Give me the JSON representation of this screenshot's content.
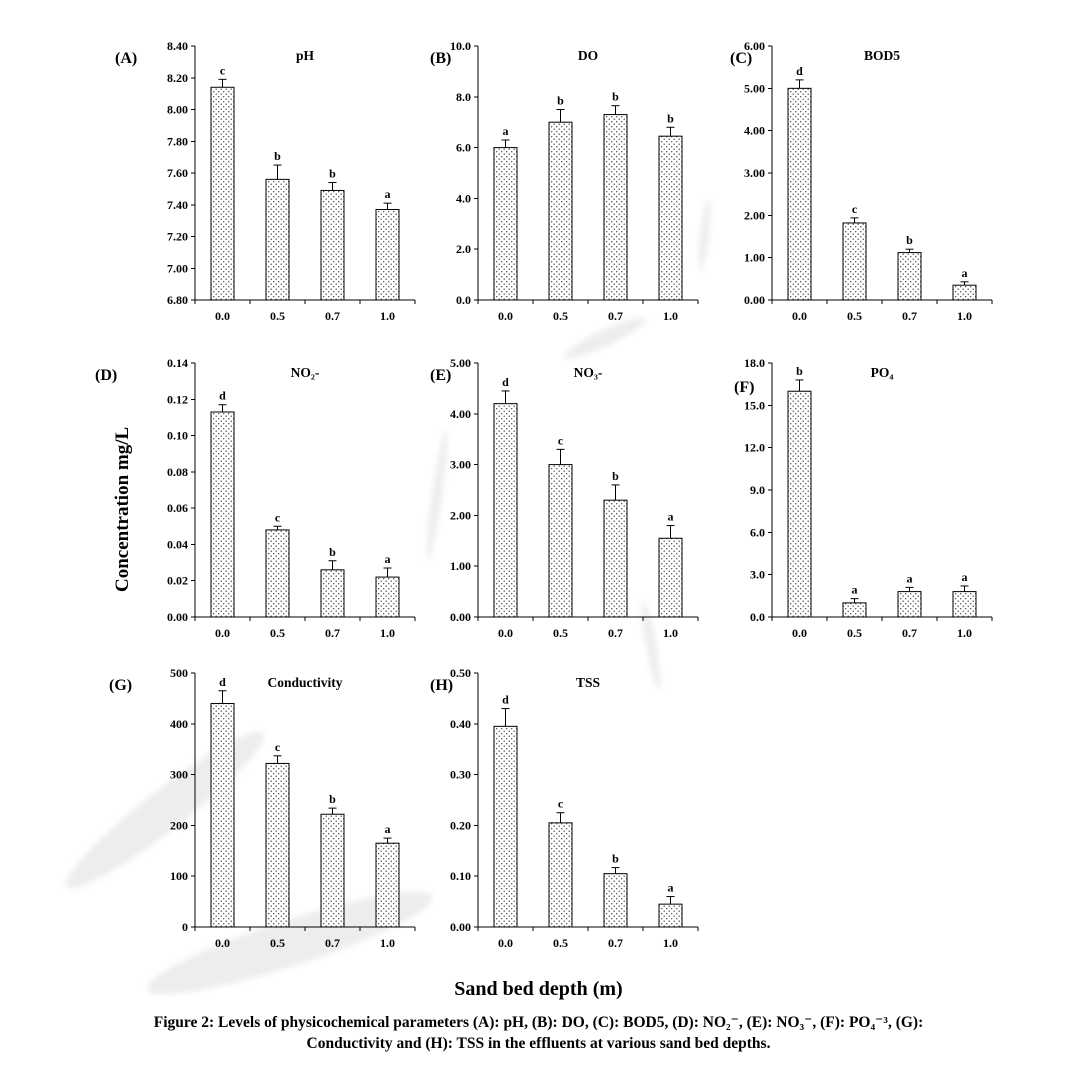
{
  "figure": {
    "y_axis_label": "Concentration mg/L",
    "x_axis_label": "Sand bed depth (m)",
    "caption_line1": "Figure 2: Levels of physicochemical parameters (A): pH, (B): DO, (C): BOD5, (D): NO₂⁻, (E): NO₃⁻, (F): PO₄⁻³, (G):",
    "caption_line2": "Conductivity and (H): TSS in the effluents at various sand bed depths."
  },
  "chart_data": [
    {
      "panel": "(A)",
      "title": "pH",
      "type": "bar",
      "categories": [
        "0.0",
        "0.5",
        "0.7",
        "1.0"
      ],
      "values": [
        8.14,
        7.56,
        7.49,
        7.37
      ],
      "errors": [
        0.05,
        0.09,
        0.05,
        0.04
      ],
      "letters": [
        "c",
        "b",
        "b",
        "a"
      ],
      "ymin": 6.8,
      "ymax": 8.4,
      "yticks": [
        "6.80",
        "7.00",
        "7.20",
        "7.40",
        "7.60",
        "7.80",
        "8.00",
        "8.20",
        "8.40"
      ]
    },
    {
      "panel": "(B)",
      "title": "DO",
      "type": "bar",
      "categories": [
        "0.0",
        "0.5",
        "0.7",
        "1.0"
      ],
      "values": [
        6.0,
        7.0,
        7.3,
        6.45
      ],
      "errors": [
        0.3,
        0.5,
        0.35,
        0.35
      ],
      "letters": [
        "a",
        "b",
        "b",
        "b"
      ],
      "ymin": 0,
      "ymax": 10,
      "yticks": [
        "0.0",
        "2.0",
        "4.0",
        "6.0",
        "8.0",
        "10.0"
      ]
    },
    {
      "panel": "(C)",
      "title": "BOD5",
      "type": "bar",
      "categories": [
        "0.0",
        "0.5",
        "0.7",
        "1.0"
      ],
      "values": [
        5.0,
        1.82,
        1.12,
        0.35
      ],
      "errors": [
        0.2,
        0.12,
        0.08,
        0.08
      ],
      "letters": [
        "d",
        "c",
        "b",
        "a"
      ],
      "ymin": 0,
      "ymax": 6,
      "yticks": [
        "0.00",
        "1.00",
        "2.00",
        "3.00",
        "4.00",
        "5.00",
        "6.00"
      ]
    },
    {
      "panel": "(D)",
      "title": "NO₂-",
      "type": "bar",
      "categories": [
        "0.0",
        "0.5",
        "0.7",
        "1.0"
      ],
      "values": [
        0.113,
        0.048,
        0.026,
        0.022
      ],
      "errors": [
        0.004,
        0.002,
        0.005,
        0.005
      ],
      "letters": [
        "d",
        "c",
        "b",
        "a"
      ],
      "ymin": 0,
      "ymax": 0.14,
      "yticks": [
        "0.00",
        "0.02",
        "0.04",
        "0.06",
        "0.08",
        "0.10",
        "0.12",
        "0.14"
      ]
    },
    {
      "panel": "(E)",
      "title": "NO₃-",
      "type": "bar",
      "categories": [
        "0.0",
        "0.5",
        "0.7",
        "1.0"
      ],
      "values": [
        4.2,
        3.0,
        2.3,
        1.55
      ],
      "errors": [
        0.25,
        0.3,
        0.3,
        0.25
      ],
      "letters": [
        "d",
        "c",
        "b",
        "a"
      ],
      "ymin": 0,
      "ymax": 5,
      "yticks": [
        "0.00",
        "1.00",
        "2.00",
        "3.00",
        "4.00",
        "5.00"
      ]
    },
    {
      "panel": "(F)",
      "title": "PO₄",
      "type": "bar",
      "categories": [
        "0.0",
        "0.5",
        "0.7",
        "1.0"
      ],
      "values": [
        16.0,
        1.0,
        1.8,
        1.8
      ],
      "errors": [
        0.8,
        0.3,
        0.3,
        0.4
      ],
      "letters": [
        "b",
        "a",
        "a",
        "a"
      ],
      "ymin": 0,
      "ymax": 18,
      "yticks": [
        "0.0",
        "3.0",
        "6.0",
        "9.0",
        "12.0",
        "15.0",
        "18.0"
      ]
    },
    {
      "panel": "(G)",
      "title": "Conductivity",
      "type": "bar",
      "categories": [
        "0.0",
        "0.5",
        "0.7",
        "1.0"
      ],
      "values": [
        440,
        322,
        222,
        165
      ],
      "errors": [
        25,
        15,
        12,
        10
      ],
      "letters": [
        "d",
        "c",
        "b",
        "a"
      ],
      "ymin": 0,
      "ymax": 500,
      "yticks": [
        "0",
        "100",
        "200",
        "300",
        "400",
        "500"
      ]
    },
    {
      "panel": "(H)",
      "title": "TSS",
      "type": "bar",
      "categories": [
        "0.0",
        "0.5",
        "0.7",
        "1.0"
      ],
      "values": [
        0.395,
        0.205,
        0.105,
        0.045
      ],
      "errors": [
        0.035,
        0.02,
        0.012,
        0.015
      ],
      "letters": [
        "d",
        "c",
        "b",
        "a"
      ],
      "ymin": 0,
      "ymax": 0.5,
      "yticks": [
        "0.00",
        "0.10",
        "0.20",
        "0.30",
        "0.40",
        "0.50"
      ]
    }
  ]
}
